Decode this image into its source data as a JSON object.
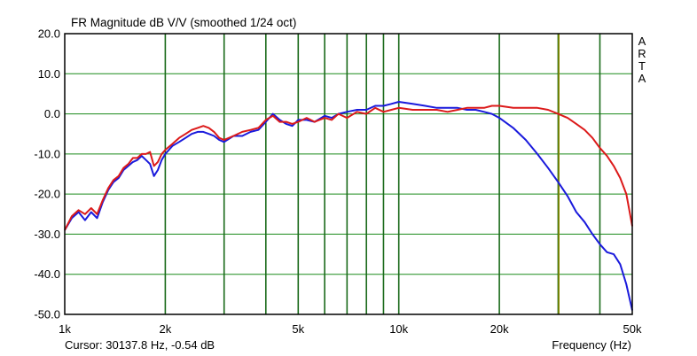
{
  "chart_data": {
    "type": "line",
    "title": "FR Magnitude dB V/V (smoothed 1/24 oct)",
    "xlabel": "Frequency (Hz)",
    "ylabel": "",
    "x_scale": "log",
    "xlim": [
      1000,
      50000
    ],
    "ylim": [
      -50,
      20
    ],
    "x_ticks": [
      1000,
      2000,
      5000,
      10000,
      20000,
      50000
    ],
    "x_tick_labels": [
      "1k",
      "2k",
      "5k",
      "10k",
      "20k",
      "50k"
    ],
    "y_ticks": [
      20,
      10,
      0,
      -10,
      -20,
      -30,
      -40,
      -50
    ],
    "y_tick_labels": [
      "20.0",
      "10.0",
      "0.0",
      "-10.0",
      "-20.0",
      "-30.0",
      "-40.0",
      "-50.0"
    ],
    "grid": true,
    "brand": "ARTA",
    "cursor_readout": "Cursor: 30137.8 Hz, -0.54 dB",
    "cursor_x": 30137.8,
    "series": [
      {
        "color": "#1a1adc",
        "x": [
          1000,
          1050,
          1100,
          1150,
          1200,
          1250,
          1300,
          1350,
          1400,
          1450,
          1500,
          1550,
          1600,
          1650,
          1700,
          1750,
          1800,
          1850,
          1900,
          1950,
          2000,
          2100,
          2200,
          2300,
          2400,
          2500,
          2600,
          2700,
          2800,
          2900,
          3000,
          3200,
          3400,
          3600,
          3800,
          4000,
          4200,
          4400,
          4600,
          4800,
          5000,
          5300,
          5600,
          6000,
          6300,
          6600,
          7000,
          7500,
          8000,
          8500,
          9000,
          9500,
          10000,
          11000,
          12000,
          13000,
          14000,
          15000,
          16000,
          17000,
          18000,
          19000,
          20000,
          22000,
          24000,
          26000,
          28000,
          30000,
          32000,
          34000,
          36000,
          38000,
          40000,
          42000,
          44000,
          46000,
          48000,
          50000
        ],
        "values": [
          -29,
          -26,
          -24.5,
          -26.5,
          -24.5,
          -26,
          -22,
          -19,
          -17,
          -16,
          -14,
          -13,
          -12,
          -11.5,
          -10.5,
          -11.5,
          -12.5,
          -15.5,
          -14,
          -11.5,
          -10,
          -8,
          -7,
          -6,
          -5,
          -4.5,
          -4.5,
          -5,
          -5.5,
          -6.5,
          -7,
          -5.5,
          -5.5,
          -4.5,
          -4,
          -2,
          0,
          -1.5,
          -2.5,
          -3,
          -1.5,
          -1.5,
          -2,
          -0.5,
          -1,
          0,
          0.5,
          1,
          1,
          2,
          2,
          2.5,
          3,
          2.5,
          2,
          1.5,
          1.5,
          1.5,
          1,
          1,
          0.5,
          0,
          -1,
          -3.5,
          -6.5,
          -10,
          -13.5,
          -17,
          -20.5,
          -24.5,
          -27,
          -30,
          -32.5,
          -34.5,
          -35,
          -37.5,
          -42.5,
          -49
        ]
      },
      {
        "color": "#dc1a1a",
        "x": [
          1000,
          1050,
          1100,
          1150,
          1200,
          1250,
          1300,
          1350,
          1400,
          1450,
          1500,
          1550,
          1600,
          1650,
          1700,
          1750,
          1800,
          1850,
          1900,
          1950,
          2000,
          2100,
          2200,
          2300,
          2400,
          2500,
          2600,
          2700,
          2800,
          2900,
          3000,
          3200,
          3400,
          3600,
          3800,
          4000,
          4200,
          4400,
          4600,
          4800,
          5000,
          5300,
          5600,
          6000,
          6300,
          6600,
          7000,
          7500,
          8000,
          8500,
          9000,
          9500,
          10000,
          11000,
          12000,
          13000,
          14000,
          15000,
          16000,
          17000,
          18000,
          19000,
          20000,
          22000,
          24000,
          26000,
          28000,
          30000,
          32000,
          34000,
          36000,
          38000,
          40000,
          42000,
          44000,
          46000,
          48000,
          50000
        ],
        "values": [
          -29,
          -25.5,
          -24,
          -25,
          -23.5,
          -25,
          -21.5,
          -18.5,
          -16.5,
          -15.5,
          -13.5,
          -12.5,
          -11,
          -11,
          -10,
          -10,
          -9.5,
          -13,
          -12,
          -10,
          -9,
          -7.5,
          -6,
          -5,
          -4,
          -3.5,
          -3,
          -3.5,
          -4.5,
          -6,
          -6.5,
          -5.5,
          -4.5,
          -4,
          -3.5,
          -1.5,
          -0.5,
          -2,
          -2,
          -2.5,
          -2,
          -1,
          -2,
          -1,
          -1.5,
          0,
          -1,
          0.5,
          0,
          1.5,
          0.5,
          1,
          1.5,
          1,
          1,
          1,
          0.5,
          1,
          1.5,
          1.5,
          1.5,
          2,
          2,
          1.5,
          1.5,
          1.5,
          1,
          0,
          -1,
          -2.5,
          -4,
          -6,
          -8.5,
          -10.5,
          -13,
          -16,
          -20,
          -28
        ]
      }
    ]
  }
}
